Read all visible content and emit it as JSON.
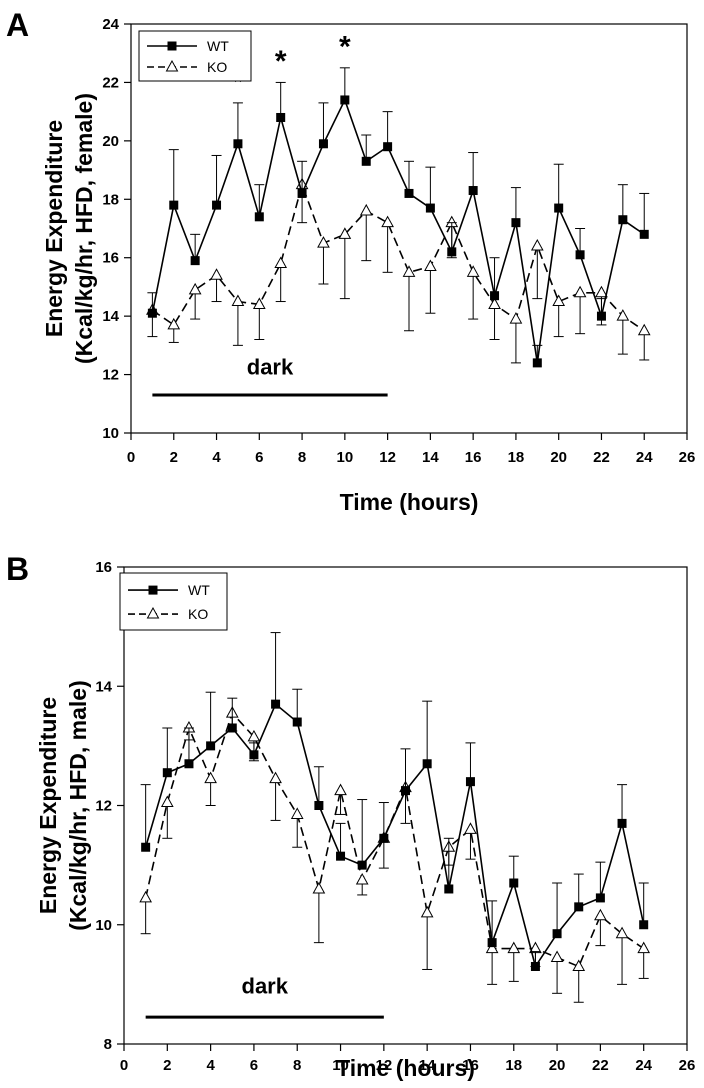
{
  "chart_data": [
    {
      "type": "line",
      "panel_label": "A",
      "xlabel": "Time (hours)",
      "ylabel_line1": "Energy Expenditure",
      "ylabel_line2": "(Kcal/kg/hr, HFD, female)",
      "xlim": [
        0,
        26
      ],
      "ylim": [
        10,
        24
      ],
      "xticks": [
        0,
        2,
        4,
        6,
        8,
        10,
        12,
        14,
        16,
        18,
        20,
        22,
        24,
        26
      ],
      "yticks": [
        10,
        12,
        14,
        16,
        18,
        20,
        22,
        24
      ],
      "legend_position": "top-left",
      "annotation": {
        "text": "dark",
        "x_start": 1,
        "x_end": 12,
        "y": 11.3,
        "label_y": 12.0
      },
      "significance": [
        {
          "x": 5,
          "y": 22.1,
          "text": "*"
        },
        {
          "x": 7,
          "y": 22.8,
          "text": "*"
        },
        {
          "x": 10,
          "y": 23.3,
          "text": "*"
        }
      ],
      "x": [
        1,
        2,
        3,
        4,
        5,
        6,
        7,
        8,
        9,
        10,
        11,
        12,
        13,
        14,
        15,
        16,
        17,
        18,
        19,
        20,
        21,
        22,
        23,
        24
      ],
      "series": [
        {
          "name": "WT",
          "marker": "filled-square",
          "dash": "solid",
          "values": [
            14.1,
            17.8,
            15.9,
            17.8,
            19.9,
            17.4,
            20.8,
            18.2,
            19.9,
            21.4,
            19.3,
            19.8,
            18.2,
            17.7,
            16.2,
            18.3,
            14.7,
            17.2,
            12.4,
            17.7,
            16.1,
            14.0,
            17.3,
            16.8
          ],
          "errors": [
            0.7,
            1.9,
            0.9,
            1.7,
            1.4,
            1.1,
            1.2,
            1.1,
            1.4,
            1.1,
            0.9,
            1.2,
            1.1,
            1.4,
            1.0,
            1.3,
            1.3,
            1.2,
            0.6,
            1.5,
            0.9,
            0.6,
            1.2,
            1.4
          ]
        },
        {
          "name": "KO",
          "marker": "open-triangle",
          "dash": "dashed",
          "values": [
            14.2,
            13.7,
            14.9,
            15.4,
            14.5,
            14.4,
            15.8,
            18.5,
            16.5,
            16.8,
            17.6,
            17.2,
            15.5,
            15.7,
            17.2,
            15.5,
            14.4,
            13.9,
            16.4,
            14.5,
            14.8,
            14.8,
            14.0,
            13.5
          ],
          "errors": [
            0.9,
            0.6,
            1.0,
            0.9,
            1.5,
            1.2,
            1.3,
            1.3,
            1.4,
            2.2,
            1.7,
            1.7,
            2.0,
            1.6,
            1.2,
            1.6,
            1.2,
            1.5,
            1.8,
            1.2,
            1.4,
            1.1,
            1.3,
            1.0
          ]
        }
      ]
    },
    {
      "type": "line",
      "panel_label": "B",
      "xlabel": "Time (hours)",
      "ylabel_line1": "Energy Expenditure",
      "ylabel_line2": "(Kcal/kg/hr, HFD, male)",
      "xlim": [
        0,
        26
      ],
      "ylim": [
        8,
        16
      ],
      "xticks": [
        0,
        2,
        4,
        6,
        8,
        10,
        12,
        14,
        16,
        18,
        20,
        22,
        24,
        26
      ],
      "yticks": [
        8,
        10,
        12,
        14,
        16
      ],
      "legend_position": "top-left",
      "annotation": {
        "text": "dark",
        "x_start": 1,
        "x_end": 12,
        "y": 8.45,
        "label_y": 8.85
      },
      "significance": [],
      "x": [
        1,
        2,
        3,
        4,
        5,
        6,
        7,
        8,
        9,
        10,
        11,
        12,
        13,
        14,
        15,
        16,
        17,
        18,
        19,
        20,
        21,
        22,
        23,
        24
      ],
      "series": [
        {
          "name": "WT",
          "marker": "filled-square",
          "dash": "solid",
          "values": [
            11.3,
            12.55,
            12.7,
            13.0,
            13.3,
            12.85,
            13.7,
            13.4,
            12.0,
            11.15,
            11.0,
            11.45,
            12.25,
            12.7,
            10.6,
            12.4,
            9.7,
            10.7,
            9.3,
            9.85,
            10.3,
            10.45,
            11.7,
            10.0
          ],
          "errors": [
            1.05,
            0.75,
            0.6,
            0.9,
            0.5,
            0.2,
            1.2,
            0.55,
            0.65,
            0.55,
            1.1,
            0.6,
            0.7,
            1.05,
            0.85,
            0.65,
            0.7,
            0.45,
            0.25,
            0.85,
            0.55,
            0.6,
            0.65,
            0.7
          ]
        },
        {
          "name": "KO",
          "marker": "open-triangle",
          "dash": "dashed",
          "values": [
            10.45,
            12.05,
            13.3,
            12.45,
            13.55,
            13.15,
            12.45,
            11.85,
            10.6,
            12.25,
            10.75,
            11.45,
            12.3,
            10.2,
            11.3,
            11.6,
            9.6,
            9.6,
            9.6,
            9.45,
            9.3,
            10.15,
            9.85,
            9.6
          ],
          "errors": [
            0.6,
            0.6,
            0.2,
            0.45,
            0.3,
            0.4,
            0.7,
            0.55,
            0.9,
            0.4,
            0.25,
            0.5,
            0.6,
            0.95,
            0.3,
            0.5,
            0.6,
            0.55,
            0.3,
            0.6,
            0.6,
            0.5,
            0.85,
            0.5
          ]
        }
      ]
    }
  ]
}
